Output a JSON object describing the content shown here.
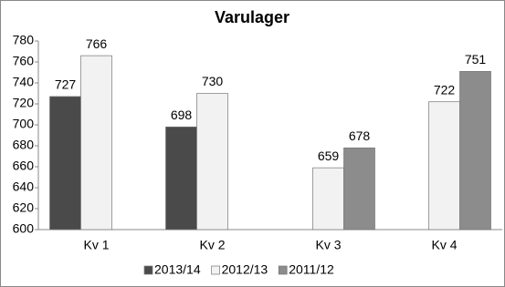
{
  "chart_data": {
    "type": "bar",
    "title": "Varulager",
    "categories": [
      "Kv 1",
      "Kv 2",
      "Kv 3",
      "Kv 4"
    ],
    "series": [
      {
        "name": "2013/14",
        "color": "#4a4a4a",
        "values": [
          727,
          698,
          null,
          null
        ]
      },
      {
        "name": "2012/13",
        "color": "#f2f2f2",
        "values": [
          766,
          730,
          659,
          722
        ]
      },
      {
        "name": "2011/12",
        "color": "#8c8c8c",
        "values": [
          null,
          null,
          678,
          751
        ]
      }
    ],
    "ylim": [
      600,
      780
    ],
    "yticks": [
      600,
      620,
      640,
      660,
      680,
      700,
      720,
      740,
      760,
      780
    ],
    "legend": "bottom"
  }
}
